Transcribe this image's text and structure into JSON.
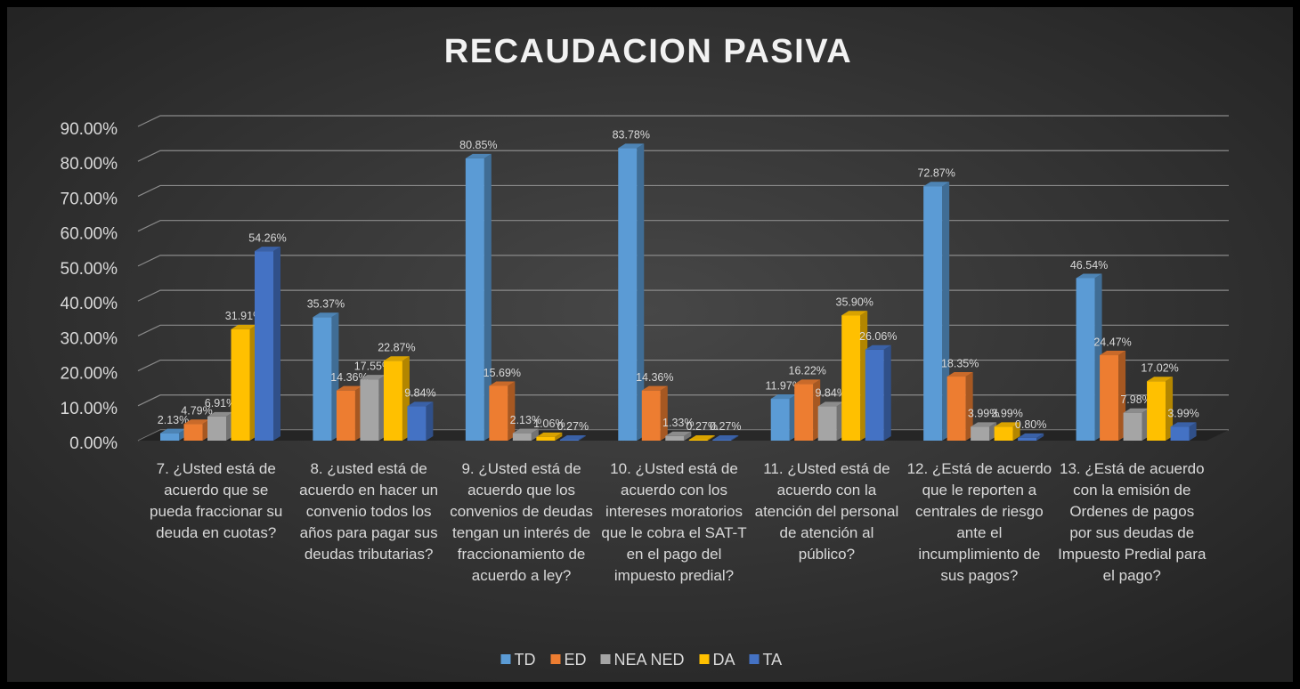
{
  "chart_data": {
    "type": "bar3d",
    "title": "RECAUDACION PASIVA",
    "categories": [
      "7. ¿Usted está de acuerdo que se pueda fraccionar su deuda en cuotas?",
      "8. ¿usted está de acuerdo en hacer un convenio todos los años para pagar sus deudas tributarias?",
      "9. ¿Usted está de acuerdo que los convenios de deudas tengan un interés de fraccionamiento de acuerdo a ley?",
      "10. ¿Usted está de acuerdo con los intereses moratorios que le cobra el SAT-T en el pago del impuesto predial?",
      "11. ¿Usted está de acuerdo con la atención del personal de atención al público?",
      "12. ¿Está de acuerdo que le reporten a centrales de riesgo ante el incumplimiento de sus pagos?",
      "13. ¿Está de acuerdo con la emisión de Ordenes de pagos por sus deudas de Impuesto Predial para el pago?"
    ],
    "series": [
      {
        "name": "TD",
        "color": "#5b9bd5",
        "values": [
          2.13,
          35.37,
          80.85,
          83.78,
          11.97,
          72.87,
          46.54
        ],
        "value_labels": [
          "2.13%",
          "35.37%",
          "80.85%",
          "83.78%",
          "11.97%",
          "72.87%",
          "46.54%"
        ]
      },
      {
        "name": "ED",
        "color": "#ed7d31",
        "values": [
          4.79,
          14.36,
          15.69,
          14.36,
          16.22,
          18.35,
          24.47
        ],
        "value_labels": [
          "4.79%",
          "14.36%",
          "15.69%",
          "14.36%",
          "16.22%",
          "18.35%",
          "24.47%"
        ]
      },
      {
        "name": "NEA NED",
        "color": "#a5a5a5",
        "values": [
          6.91,
          17.55,
          2.13,
          1.33,
          9.84,
          3.99,
          7.98
        ],
        "value_labels": [
          "6.91%",
          "17.55%",
          "2.13%",
          "1.33%",
          "9.84%",
          "3.99%",
          "7.98%"
        ]
      },
      {
        "name": "DA",
        "color": "#ffc000",
        "values": [
          31.91,
          22.87,
          1.06,
          0.27,
          35.9,
          3.99,
          17.02
        ],
        "value_labels": [
          "31.91%",
          "22.87%",
          "1.06%",
          "0.27%",
          "35.90%",
          "3.99%",
          "17.02%"
        ]
      },
      {
        "name": "TA",
        "color": "#4472c4",
        "values": [
          54.26,
          9.84,
          0.27,
          0.27,
          26.06,
          0.8,
          3.99
        ],
        "value_labels": [
          "54.26%",
          "9.84%",
          "0.27%",
          "0.27%",
          "26.06%",
          "0.80%",
          "3.99%"
        ]
      }
    ],
    "ylim": [
      0,
      90
    ],
    "yticks": [
      {
        "value": 0,
        "label": "0.00%"
      },
      {
        "value": 10,
        "label": "10.00%"
      },
      {
        "value": 20,
        "label": "20.00%"
      },
      {
        "value": 30,
        "label": "30.00%"
      },
      {
        "value": 40,
        "label": "40.00%"
      },
      {
        "value": 50,
        "label": "50.00%"
      },
      {
        "value": 60,
        "label": "60.00%"
      },
      {
        "value": 70,
        "label": "70.00%"
      },
      {
        "value": 80,
        "label": "80.00%"
      },
      {
        "value": 90,
        "label": "90.00%"
      }
    ],
    "grid": true,
    "legend": "bottom"
  }
}
